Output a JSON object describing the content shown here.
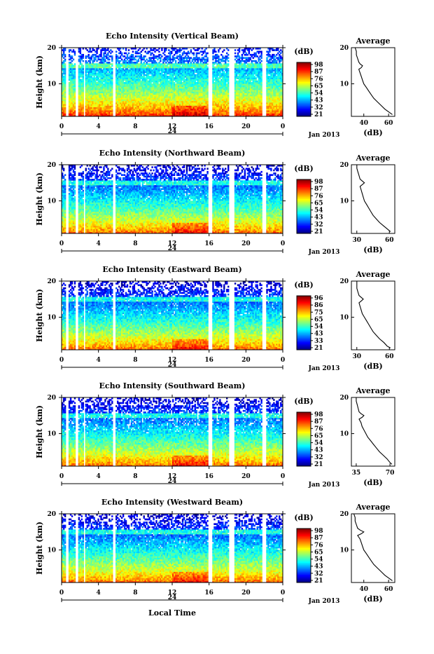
{
  "figure": {
    "x_axis_label": "Local Time",
    "colorbar_unit": "(dB)",
    "date_label": "Jan 2013",
    "day_label": "24",
    "y_axis_label": "Height (km)",
    "average_title": "Average",
    "average_xlabel": "(dB)"
  },
  "chart_data": [
    {
      "type": "heatmap",
      "title": "Echo Intensity (Vertical Beam)",
      "xlabel": "",
      "ylabel": "Height (km)",
      "x_ticks": [
        "0",
        "4",
        "8",
        "12",
        "16",
        "20",
        "0"
      ],
      "y_ticks": [
        "20",
        "10"
      ],
      "xlim": [
        0,
        24
      ],
      "ylim": [
        1,
        20
      ],
      "colorbar_ticks": [
        "98",
        "87",
        "76",
        "65",
        "54",
        "43",
        "32",
        "21"
      ],
      "colorbar_range": [
        21,
        98
      ],
      "profile": {
        "title": "Average",
        "xlabel": "(dB)",
        "x_ticks": [
          "40",
          "60"
        ],
        "xlim": [
          30,
          65
        ],
        "heights": [
          1.5,
          2,
          3,
          4,
          5,
          6,
          7,
          8,
          9,
          10,
          11,
          12,
          13,
          14,
          14.5,
          15,
          15.5,
          16,
          17,
          18,
          19,
          20
        ],
        "values": [
          63,
          61,
          57,
          54,
          51,
          48,
          46,
          44,
          42,
          40,
          39,
          38,
          37,
          36,
          38,
          39,
          37,
          36,
          35,
          34,
          34,
          33
        ]
      }
    },
    {
      "type": "heatmap",
      "title": "Echo Intensity (Northward Beam)",
      "xlabel": "",
      "ylabel": "Height (km)",
      "x_ticks": [
        "0",
        "4",
        "8",
        "12",
        "16",
        "20",
        "0"
      ],
      "y_ticks": [
        "20",
        "10"
      ],
      "xlim": [
        0,
        24
      ],
      "ylim": [
        1,
        20
      ],
      "colorbar_ticks": [
        "98",
        "87",
        "76",
        "65",
        "54",
        "43",
        "32",
        "21"
      ],
      "colorbar_range": [
        21,
        98
      ],
      "profile": {
        "title": "Average",
        "xlabel": "(dB)",
        "x_ticks": [
          "30",
          "60"
        ],
        "xlim": [
          25,
          65
        ],
        "heights": [
          1.5,
          2,
          3,
          4,
          5,
          6,
          7,
          8,
          9,
          10,
          11,
          12,
          13,
          14,
          14.5,
          15,
          15.5,
          16,
          17,
          18,
          19,
          20
        ],
        "values": [
          61,
          59,
          55,
          51,
          48,
          45,
          43,
          41,
          39,
          37,
          36,
          35,
          34,
          33,
          35,
          37,
          35,
          33,
          32,
          31,
          30,
          30
        ]
      }
    },
    {
      "type": "heatmap",
      "title": "Echo Intensity (Eastward Beam)",
      "xlabel": "",
      "ylabel": "Height (km)",
      "x_ticks": [
        "0",
        "4",
        "8",
        "12",
        "16",
        "20",
        "0"
      ],
      "y_ticks": [
        "20",
        "10"
      ],
      "xlim": [
        0,
        24
      ],
      "ylim": [
        1,
        20
      ],
      "colorbar_ticks": [
        "96",
        "86",
        "75",
        "65",
        "54",
        "43",
        "33",
        "21"
      ],
      "colorbar_range": [
        21,
        96
      ],
      "profile": {
        "title": "Average",
        "xlabel": "(dB)",
        "x_ticks": [
          "30",
          "60"
        ],
        "xlim": [
          25,
          65
        ],
        "heights": [
          1.5,
          2,
          3,
          4,
          5,
          6,
          7,
          8,
          9,
          10,
          11,
          12,
          13,
          14,
          14.5,
          15,
          15.5,
          16,
          17,
          18,
          19,
          20
        ],
        "values": [
          61,
          58,
          55,
          51,
          48,
          45,
          43,
          41,
          39,
          37,
          35,
          34,
          33,
          32,
          34,
          36,
          34,
          32,
          31,
          30,
          30,
          30
        ]
      }
    },
    {
      "type": "heatmap",
      "title": "Echo Intensity (Southward Beam)",
      "xlabel": "",
      "ylabel": "Height (km)",
      "x_ticks": [
        "0",
        "4",
        "8",
        "12",
        "16",
        "20",
        "0"
      ],
      "y_ticks": [
        "20",
        "10"
      ],
      "xlim": [
        0,
        24
      ],
      "ylim": [
        1,
        20
      ],
      "colorbar_ticks": [
        "98",
        "87",
        "76",
        "65",
        "54",
        "43",
        "32",
        "21"
      ],
      "colorbar_range": [
        21,
        98
      ],
      "profile": {
        "title": "Average",
        "xlabel": "(dB)",
        "x_ticks": [
          "35",
          "70"
        ],
        "xlim": [
          30,
          75
        ],
        "heights": [
          1.5,
          2,
          3,
          4,
          5,
          6,
          7,
          8,
          9,
          10,
          11,
          12,
          13,
          14,
          14.5,
          15,
          15.5,
          16,
          17,
          18,
          19,
          20
        ],
        "values": [
          72,
          70,
          67,
          63,
          59,
          56,
          53,
          50,
          47,
          45,
          43,
          41,
          40,
          38,
          41,
          43,
          40,
          38,
          37,
          36,
          35,
          35
        ]
      }
    },
    {
      "type": "heatmap",
      "title": "Echo Intensity (Westward Beam)",
      "xlabel": "Local Time",
      "ylabel": "Height (km)",
      "x_ticks": [
        "0",
        "4",
        "8",
        "12",
        "16",
        "20",
        "0"
      ],
      "y_ticks": [
        "20",
        "10"
      ],
      "xlim": [
        0,
        24
      ],
      "ylim": [
        1,
        20
      ],
      "colorbar_ticks": [
        "98",
        "87",
        "76",
        "65",
        "54",
        "43",
        "32",
        "21"
      ],
      "colorbar_range": [
        21,
        98
      ],
      "profile": {
        "title": "Average",
        "xlabel": "(dB)",
        "x_ticks": [
          "40",
          "60"
        ],
        "xlim": [
          30,
          65
        ],
        "heights": [
          1.5,
          2,
          3,
          4,
          5,
          6,
          7,
          8,
          9,
          10,
          11,
          12,
          13,
          14,
          14.5,
          15,
          15.5,
          16,
          17,
          18,
          19,
          20
        ],
        "values": [
          63,
          61,
          57,
          54,
          51,
          48,
          46,
          44,
          42,
          40,
          39,
          38,
          37,
          35,
          38,
          40,
          37,
          35,
          34,
          33,
          33,
          32
        ]
      }
    }
  ]
}
